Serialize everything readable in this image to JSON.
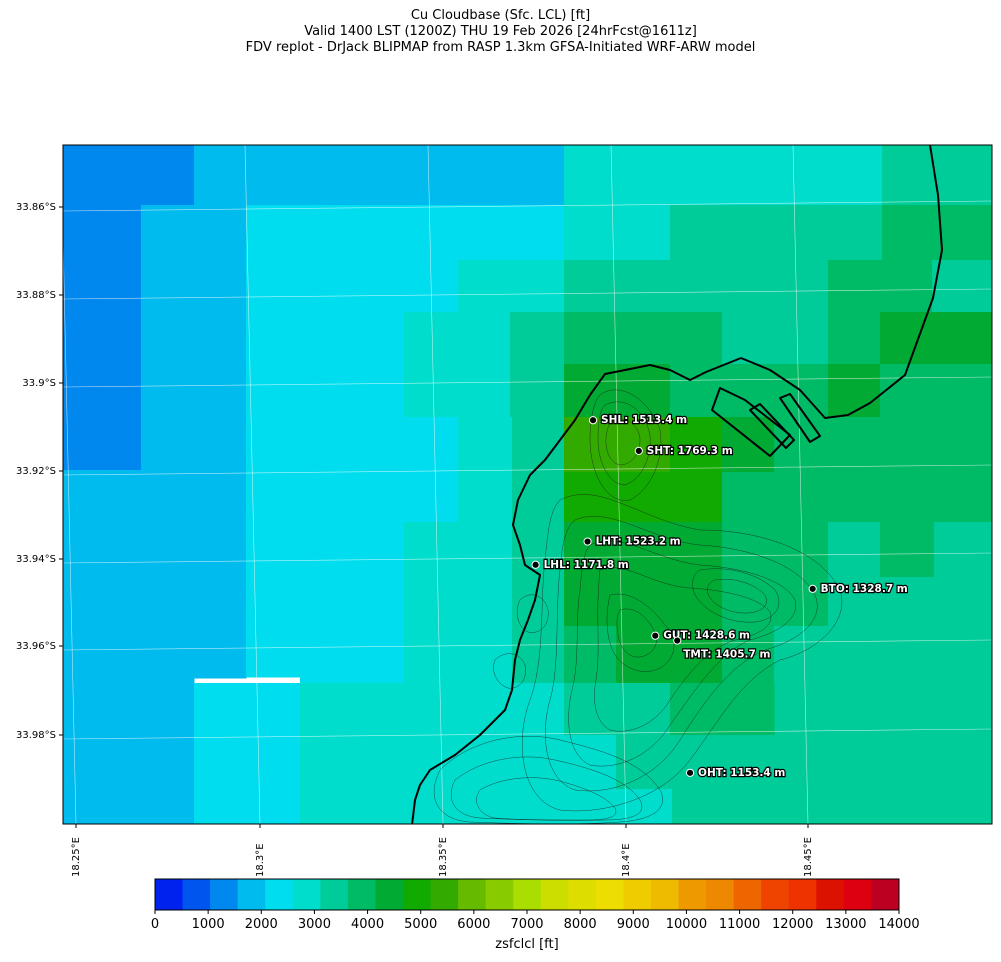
{
  "titles": [
    "Cu Cloudbase (Sfc. LCL) [ft]",
    "Valid 1400 LST (1200Z) THU 19 Feb 2026 [24hrFcst@1611z]",
    "FDV replot - DrJack BLIPMAP from RASP 1.3km GFSA-Initiated WRF-ARW model"
  ],
  "lat_ticks": [
    "33.86°S",
    "33.88°S",
    "33.9°S",
    "33.92°S",
    "33.94°S",
    "33.96°S",
    "33.98°S"
  ],
  "lon_ticks": [
    "18.25°E",
    "18.3°E",
    "18.35°E",
    "18.4°E",
    "18.45°E"
  ],
  "stations": [
    {
      "code": "SHL",
      "label": "SHL: 1513.4 m",
      "lon": 18.391,
      "lat": -33.9085
    },
    {
      "code": "SHT",
      "label": "SHT: 1769.3 m",
      "lon": 18.4035,
      "lat": -33.9155
    },
    {
      "code": "LHT",
      "label": "LHT: 1523.2 m",
      "lon": 18.3895,
      "lat": -33.9362
    },
    {
      "code": "LHL",
      "label": "LHL: 1171.8 m",
      "lon": 18.3753,
      "lat": -33.9415
    },
    {
      "code": "BTO",
      "label": "BTO: 1328.7 m",
      "lon": 18.451,
      "lat": -33.947
    },
    {
      "code": "GUT",
      "label": "GUT: 1428.6 m",
      "lon": 18.408,
      "lat": -33.9577
    },
    {
      "code": "TMT",
      "label": "TMT: 1405.7 m",
      "lon": 18.414,
      "lat": -33.9588
    },
    {
      "code": "OHT",
      "label": "OHT: 1153.4 m",
      "lon": 18.4175,
      "lat": -33.989
    }
  ],
  "colorbar": {
    "label": "zsfclcl [ft]",
    "tick_labels": [
      "0",
      "1000",
      "2000",
      "3000",
      "4000",
      "5000",
      "6000",
      "7000",
      "8000",
      "9000",
      "10000",
      "11000",
      "12000",
      "13000",
      "14000"
    ],
    "colors": [
      "#0022ee",
      "#0055ee",
      "#0088ee",
      "#00bbee",
      "#00ddee",
      "#00ddcc",
      "#00cc99",
      "#00bb66",
      "#00aa33",
      "#11aa00",
      "#33aa00",
      "#66bb00",
      "#88cc00",
      "#aadd00",
      "#ccdd00",
      "#dddd00",
      "#eedd00",
      "#eecc00",
      "#eebb00",
      "#ee9900",
      "#ee8800",
      "#ee6600",
      "#ee4400",
      "#ee3300",
      "#dd1100",
      "#dd0011",
      "#bb0022"
    ]
  },
  "grid_colors": {
    "c0": "#0088ee",
    "c1": "#00bbee",
    "c2": "#00ddee",
    "c3": "#00ddcc",
    "c4": "#00cc99",
    "c5": "#00bb66",
    "c6": "#00aa33",
    "c7": "#11aa00",
    "c8": "#33aa00"
  }
}
